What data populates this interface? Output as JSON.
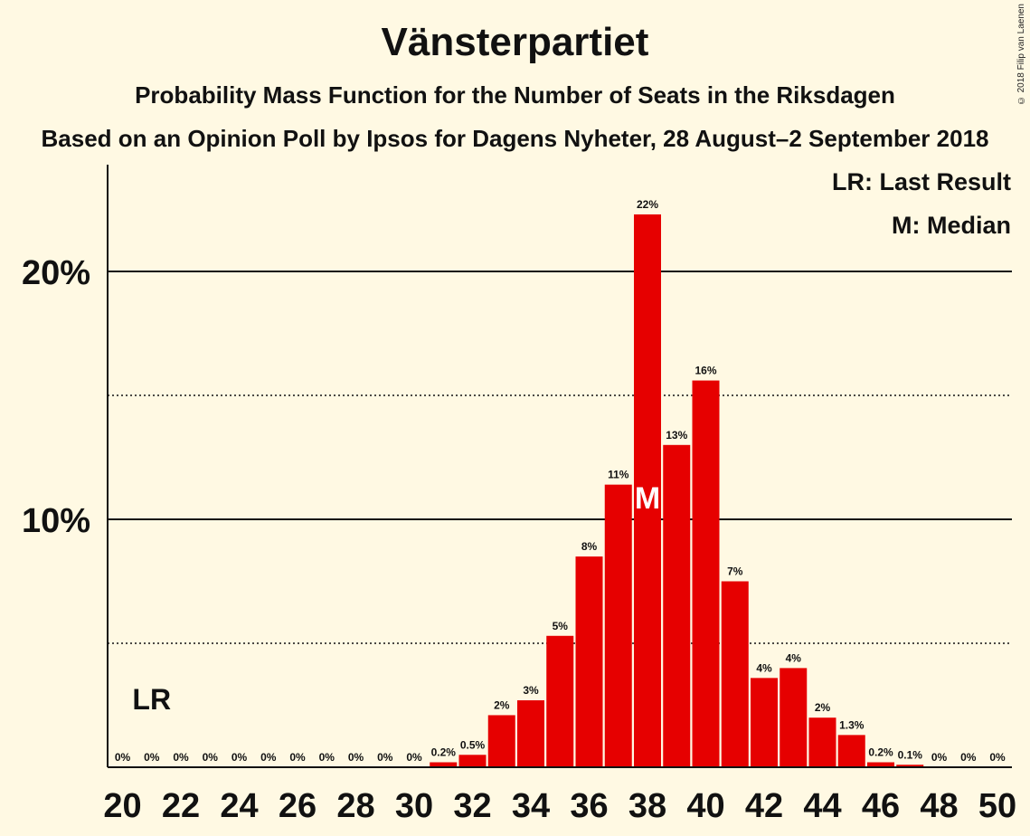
{
  "title": "Vänsterpartiet",
  "subtitle": "Probability Mass Function for the Number of Seats in the Riksdagen",
  "subtitle2": "Based on an Opinion Poll by Ipsos for Dagens Nyheter, 28 August–2 September 2018",
  "copyright": "© 2018 Filip van Laenen",
  "legend": {
    "lr": "LR: Last Result",
    "median": "M: Median"
  },
  "colors": {
    "bar": "#e60000",
    "background": "#fff9e3",
    "text": "#111111"
  },
  "chart_data": {
    "type": "bar",
    "x": [
      20,
      21,
      22,
      23,
      24,
      25,
      26,
      27,
      28,
      29,
      30,
      31,
      32,
      33,
      34,
      35,
      36,
      37,
      38,
      39,
      40,
      41,
      42,
      43,
      44,
      45,
      46,
      47,
      48,
      49,
      50
    ],
    "values": [
      0,
      0,
      0,
      0,
      0,
      0,
      0,
      0,
      0,
      0,
      0,
      0.2,
      0.5,
      2.1,
      2.7,
      5.3,
      8.5,
      11.4,
      22.3,
      13.0,
      15.6,
      7.5,
      3.6,
      4.0,
      2.0,
      1.3,
      0.2,
      0.1,
      0,
      0,
      0
    ],
    "labels": [
      "0%",
      "0%",
      "0%",
      "0%",
      "0%",
      "0%",
      "0%",
      "0%",
      "0%",
      "0%",
      "0%",
      "0.2%",
      "0.5%",
      "2%",
      "3%",
      "5%",
      "8%",
      "11%",
      "22%",
      "13%",
      "16%",
      "7%",
      "4%",
      "4%",
      "2%",
      "1.3%",
      "0.2%",
      "0.1%",
      "0%",
      "0%",
      "0%"
    ],
    "xticks": [
      20,
      22,
      24,
      26,
      28,
      30,
      32,
      34,
      36,
      38,
      40,
      42,
      44,
      46,
      48,
      50
    ],
    "xtick_labels": [
      "20",
      "22",
      "24",
      "26",
      "28",
      "30",
      "32",
      "34",
      "36",
      "38",
      "40",
      "42",
      "44",
      "46",
      "48",
      "50"
    ],
    "yticks": [
      10,
      20
    ],
    "ytick_labels": [
      "10%",
      "20%"
    ],
    "ylim": [
      0,
      24.3
    ],
    "dotted_gridlines": [
      5,
      15
    ],
    "last_result": 21,
    "last_result_label": "LR",
    "median": 38,
    "median_label": "M",
    "grid": true,
    "legend_position": "top-right"
  }
}
